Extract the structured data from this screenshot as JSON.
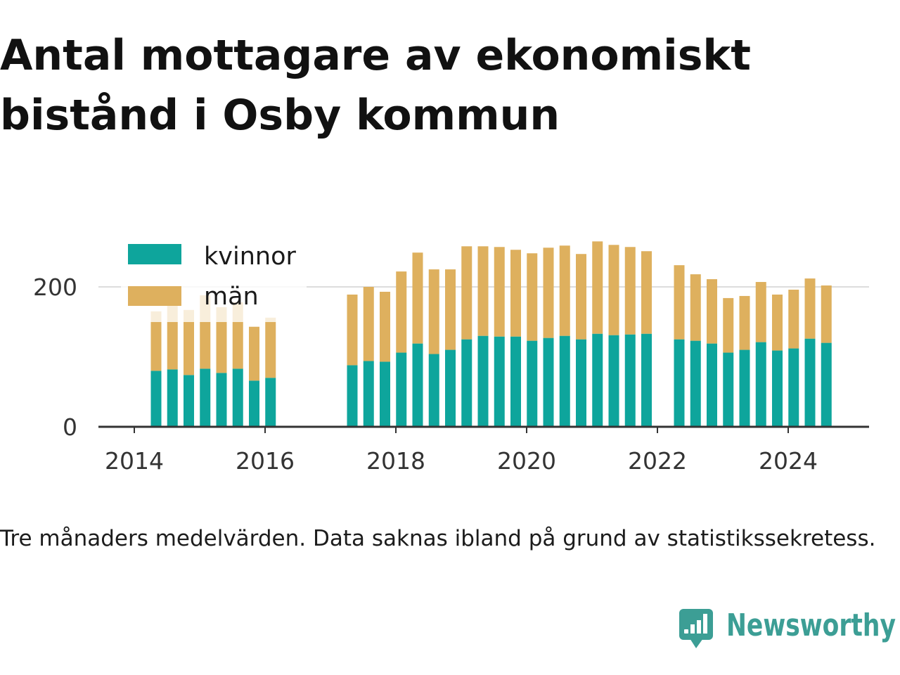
{
  "chart_data": {
    "type": "bar",
    "stacked": true,
    "title": "Antal mottagare av ekonomiskt bistånd i Osby kommun",
    "xlabel": "",
    "ylabel": "",
    "x": [
      "2014-05",
      "2014-08",
      "2014-11",
      "2015-02",
      "2015-05",
      "2015-08",
      "2015-11",
      "2016-02",
      "2017-05",
      "2017-08",
      "2017-11",
      "2018-02",
      "2018-05",
      "2018-08",
      "2018-11",
      "2019-02",
      "2019-05",
      "2019-08",
      "2019-11",
      "2020-02",
      "2020-05",
      "2020-08",
      "2020-11",
      "2021-02",
      "2021-05",
      "2021-08",
      "2021-11",
      "2022-05",
      "2022-08",
      "2022-11",
      "2023-02",
      "2023-05",
      "2023-08",
      "2023-11",
      "2024-02",
      "2024-05",
      "2024-08"
    ],
    "series": [
      {
        "name": "kvinnor",
        "color": "#0ea59c",
        "values": [
          80,
          82,
          74,
          83,
          77,
          83,
          66,
          70,
          88,
          94,
          93,
          106,
          119,
          104,
          110,
          125,
          130,
          129,
          129,
          123,
          127,
          130,
          125,
          133,
          131,
          132,
          133,
          125,
          123,
          119,
          106,
          110,
          121,
          109,
          112,
          126,
          120
        ]
      },
      {
        "name": "män",
        "color": "#deb05e",
        "values": [
          85,
          94,
          93,
          105,
          94,
          95,
          77,
          86,
          101,
          106,
          100,
          116,
          130,
          121,
          115,
          133,
          128,
          128,
          124,
          125,
          129,
          129,
          122,
          132,
          129,
          125,
          118,
          106,
          95,
          92,
          78,
          77,
          86,
          80,
          84,
          86,
          82
        ]
      }
    ],
    "xticks": [
      "2014",
      "2016",
      "2018",
      "2020",
      "2022",
      "2024"
    ],
    "yticks": [
      0,
      200
    ],
    "xlim": [
      "2013-06",
      "2025-04"
    ],
    "ylim": [
      0,
      280
    ],
    "grid": "horizontal",
    "legend_position": "top-left"
  },
  "footnote": "Tre månaders medelvärden. Data saknas ibland på grund av statistikssekretess.",
  "brand": {
    "name": "Newsworthy",
    "icon": "newsworthy-logo-icon",
    "color": "#3c9e95"
  },
  "colors": {
    "text": "#111111",
    "axis": "#333333",
    "grid": "#dddddd"
  }
}
